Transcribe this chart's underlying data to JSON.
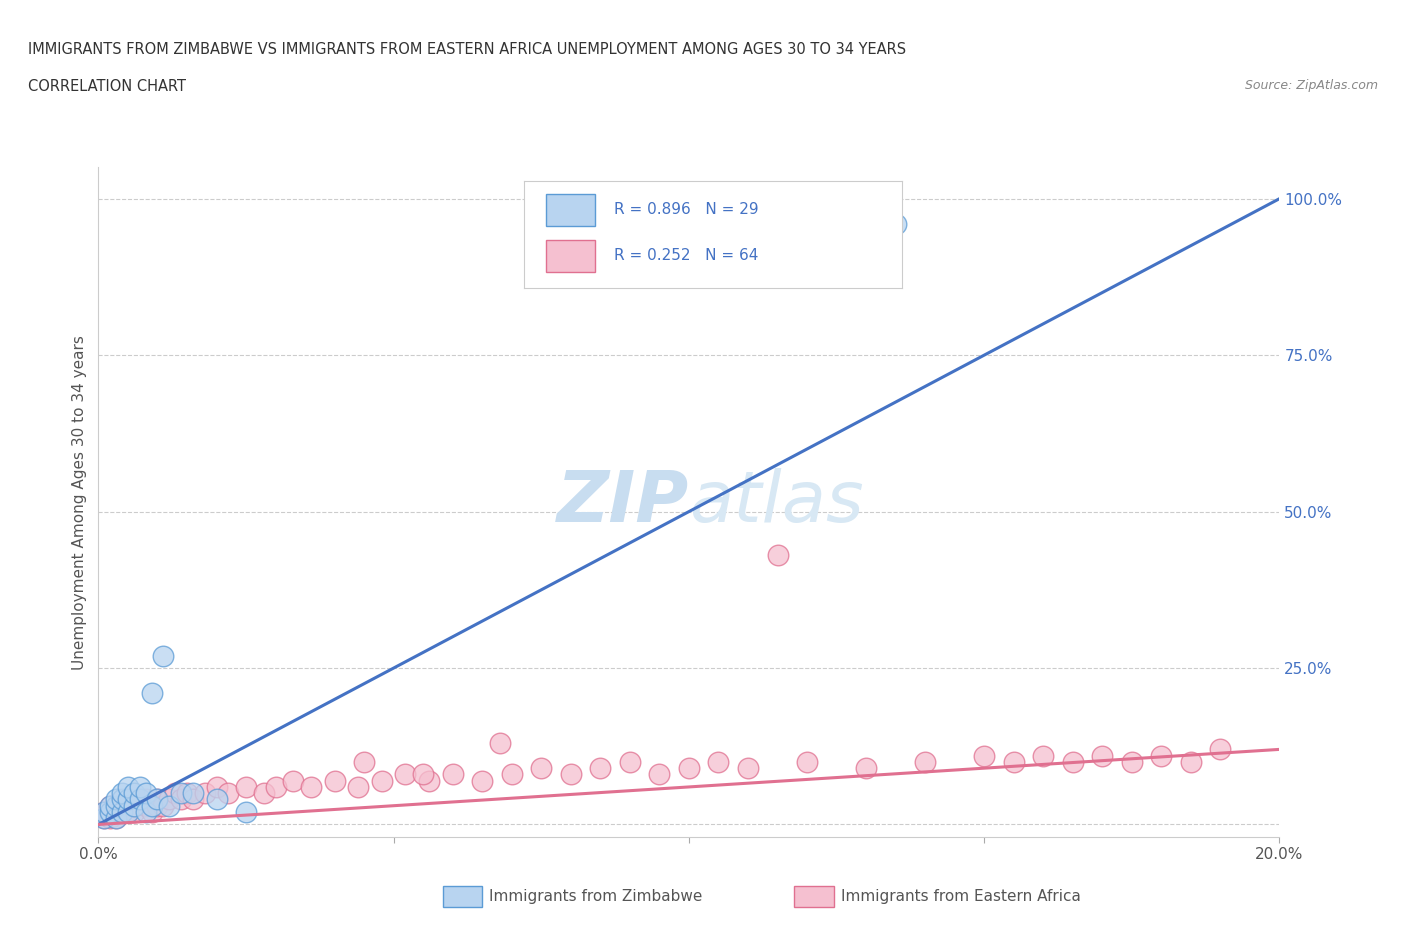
{
  "title_line1": "IMMIGRANTS FROM ZIMBABWE VS IMMIGRANTS FROM EASTERN AFRICA UNEMPLOYMENT AMONG AGES 30 TO 34 YEARS",
  "title_line2": "CORRELATION CHART",
  "source": "Source: ZipAtlas.com",
  "ylabel": "Unemployment Among Ages 30 to 34 years",
  "xlim": [
    0.0,
    0.2
  ],
  "ylim": [
    -0.02,
    1.05
  ],
  "zimbabwe_color": "#b8d4f0",
  "zimbabwe_edge_color": "#5b9bd5",
  "eastern_color": "#f5c0d0",
  "eastern_edge_color": "#e07090",
  "blue_line_color": "#4472c4",
  "pink_line_color": "#e07090",
  "watermark_color": "#d0e4f4",
  "legend_text_color": "#4472c4",
  "background_color": "#ffffff",
  "grid_color": "#cccccc",
  "zimbabwe_x": [
    0.001,
    0.001,
    0.002,
    0.002,
    0.003,
    0.003,
    0.003,
    0.004,
    0.004,
    0.004,
    0.005,
    0.005,
    0.005,
    0.006,
    0.006,
    0.007,
    0.007,
    0.008,
    0.008,
    0.009,
    0.009,
    0.01,
    0.011,
    0.012,
    0.014,
    0.016,
    0.02,
    0.025,
    0.135
  ],
  "zimbabwe_y": [
    0.01,
    0.02,
    0.02,
    0.03,
    0.01,
    0.03,
    0.04,
    0.02,
    0.04,
    0.05,
    0.02,
    0.04,
    0.06,
    0.03,
    0.05,
    0.04,
    0.06,
    0.02,
    0.05,
    0.03,
    0.21,
    0.04,
    0.27,
    0.03,
    0.05,
    0.05,
    0.04,
    0.02,
    0.96
  ],
  "eastern_x": [
    0.001,
    0.001,
    0.002,
    0.002,
    0.003,
    0.003,
    0.004,
    0.004,
    0.005,
    0.005,
    0.006,
    0.006,
    0.007,
    0.008,
    0.008,
    0.009,
    0.01,
    0.01,
    0.011,
    0.012,
    0.013,
    0.014,
    0.015,
    0.016,
    0.018,
    0.02,
    0.022,
    0.025,
    0.028,
    0.03,
    0.033,
    0.036,
    0.04,
    0.044,
    0.048,
    0.052,
    0.056,
    0.06,
    0.065,
    0.07,
    0.075,
    0.08,
    0.085,
    0.09,
    0.095,
    0.1,
    0.105,
    0.11,
    0.12,
    0.13,
    0.14,
    0.15,
    0.155,
    0.16,
    0.165,
    0.17,
    0.175,
    0.18,
    0.185,
    0.19,
    0.115,
    0.068,
    0.045,
    0.055
  ],
  "eastern_y": [
    0.01,
    0.02,
    0.01,
    0.03,
    0.02,
    0.01,
    0.03,
    0.02,
    0.02,
    0.03,
    0.02,
    0.03,
    0.04,
    0.03,
    0.04,
    0.02,
    0.03,
    0.04,
    0.03,
    0.04,
    0.05,
    0.04,
    0.05,
    0.04,
    0.05,
    0.06,
    0.05,
    0.06,
    0.05,
    0.06,
    0.07,
    0.06,
    0.07,
    0.06,
    0.07,
    0.08,
    0.07,
    0.08,
    0.07,
    0.08,
    0.09,
    0.08,
    0.09,
    0.1,
    0.08,
    0.09,
    0.1,
    0.09,
    0.1,
    0.09,
    0.1,
    0.11,
    0.1,
    0.11,
    0.1,
    0.11,
    0.1,
    0.11,
    0.1,
    0.12,
    0.43,
    0.13,
    0.1,
    0.08
  ],
  "blue_line_x": [
    0.0,
    0.2
  ],
  "blue_line_y": [
    0.0,
    1.0
  ],
  "pink_line_x": [
    0.0,
    0.2
  ],
  "pink_line_y": [
    0.0,
    0.12
  ]
}
